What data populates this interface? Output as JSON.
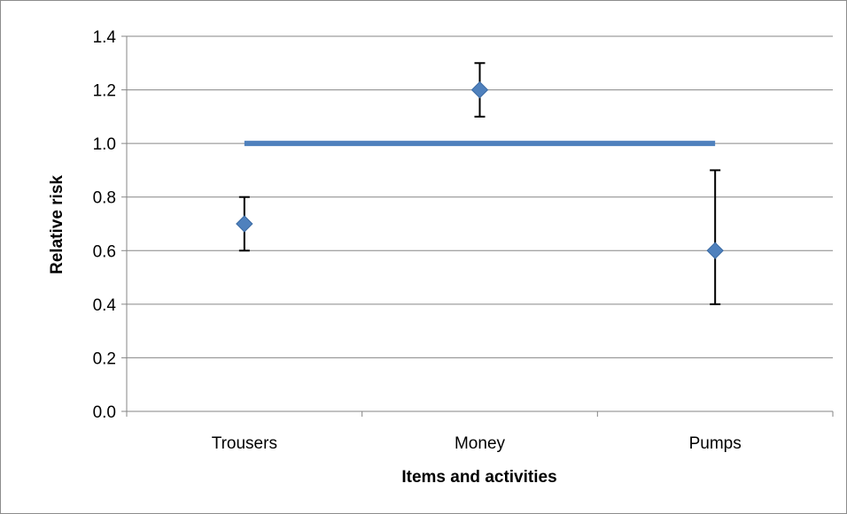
{
  "chart_data": {
    "type": "scatter",
    "title": "",
    "xlabel": "Items and activities",
    "ylabel": "Relative risk",
    "categories": [
      "Trousers",
      "Money",
      "Pumps"
    ],
    "ylim": [
      0,
      1.4
    ],
    "yticks": [
      "0.0",
      "0.2",
      "0.4",
      "0.6",
      "0.8",
      "1.0",
      "1.2",
      "1.4"
    ],
    "grid": true,
    "legend": "none",
    "series": [
      {
        "values": [
          0.7,
          1.2,
          0.6
        ],
        "error_low": [
          0.6,
          1.1,
          0.4
        ],
        "error_high": [
          0.8,
          1.3,
          0.9
        ],
        "marker": "diamond",
        "color": "#4f81bd"
      }
    ],
    "reference_line": {
      "y": 1.0,
      "from": "Trousers",
      "to": "Pumps",
      "color": "#4f81bd"
    }
  }
}
